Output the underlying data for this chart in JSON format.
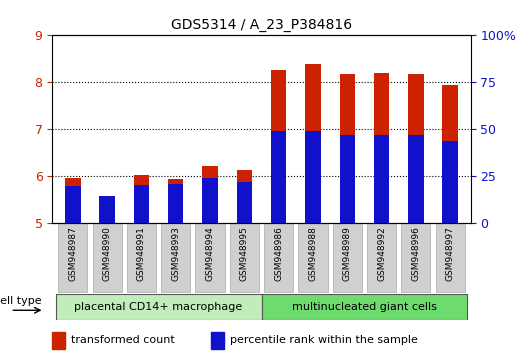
{
  "title": "GDS5314 / A_23_P384816",
  "samples": [
    "GSM948987",
    "GSM948990",
    "GSM948991",
    "GSM948993",
    "GSM948994",
    "GSM948995",
    "GSM948986",
    "GSM948988",
    "GSM948989",
    "GSM948992",
    "GSM948996",
    "GSM948997"
  ],
  "transformed_count": [
    5.97,
    5.56,
    6.02,
    5.93,
    6.22,
    6.12,
    8.27,
    8.38,
    8.17,
    8.2,
    8.17,
    7.95
  ],
  "percentile_rank_left": [
    5.78,
    5.57,
    5.8,
    5.83,
    5.97,
    5.88,
    6.97,
    6.97,
    6.87,
    6.88,
    6.88,
    6.75
  ],
  "ylim_left": [
    5,
    9
  ],
  "ylim_right": [
    0,
    100
  ],
  "right_ticks": [
    0,
    25,
    50,
    75,
    100
  ],
  "right_tick_labels": [
    "0",
    "25",
    "50",
    "75",
    "100%"
  ],
  "left_ticks": [
    5,
    6,
    7,
    8,
    9
  ],
  "groups": [
    {
      "label": "placental CD14+ macrophage",
      "start": 0,
      "end": 6,
      "color": "#c0edba"
    },
    {
      "label": "multinucleated giant cells",
      "start": 6,
      "end": 12,
      "color": "#6ddb6d"
    }
  ],
  "bar_color_red": "#cc2200",
  "bar_color_blue": "#1111cc",
  "bar_width": 0.45,
  "bg_color_plot": "#ffffff",
  "tick_label_color_left": "#cc2200",
  "tick_label_color_right": "#1111cc",
  "cell_type_label": "cell type",
  "legend_items": [
    {
      "color": "#cc2200",
      "label": "transformed count"
    },
    {
      "color": "#1111cc",
      "label": "percentile rank within the sample"
    }
  ],
  "xlabel_bg": "#d0d0d0",
  "grid_lines": [
    6,
    7,
    8
  ],
  "figsize": [
    5.23,
    3.54
  ],
  "dpi": 100
}
